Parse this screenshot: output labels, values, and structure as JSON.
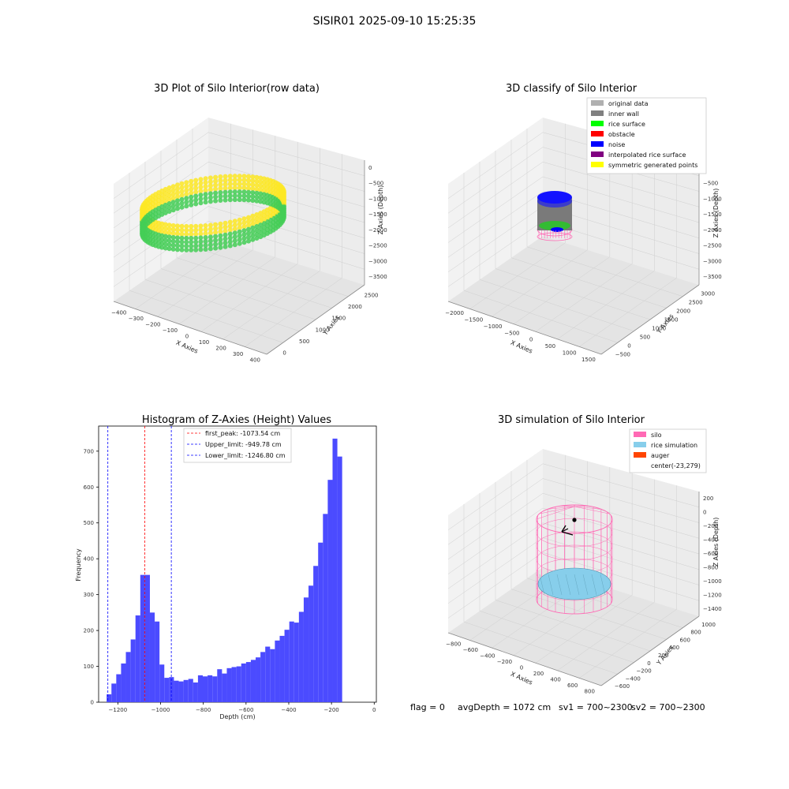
{
  "suptitle": "SISIR01 2025-09-10 15:25:35",
  "status": {
    "flag": "flag = 0",
    "avg": "avgDepth = 1072 cm",
    "sv1": "sv1 = 700~2300",
    "sv2": "sv2 = 700~2300"
  },
  "colors": {
    "hist_bar": "#4b4bff",
    "peak_line": "#ff0000",
    "limit_line": "#0000ff",
    "silo": "#ff69b4",
    "rice": "#87ceeb",
    "auger": "#ff4500"
  },
  "chart_data": [
    {
      "type": "scatter",
      "title": "3D Plot of Silo Interior(row data)",
      "xlabel": "X Axies",
      "ylabel": "Y Axies",
      "zlabel": "Z Axies (Depth)",
      "x_ticks": [
        "−400",
        "−300",
        "−200",
        "−100",
        "0",
        "100",
        "200",
        "300",
        "400"
      ],
      "y_ticks": [
        "0",
        "500",
        "1000",
        "1500",
        "2000",
        "2500"
      ],
      "z_ticks": [
        "0",
        "−500",
        "−1000",
        "−1500",
        "−2000",
        "−2500",
        "−3000",
        "−3500"
      ],
      "colormap": [
        "#44ce56",
        "#fde725"
      ]
    },
    {
      "type": "scatter",
      "title": "3D classify of Silo Interior",
      "xlabel": "X Axies",
      "ylabel": "Y Axies",
      "zlabel": "Z Axies (Depth)",
      "x_ticks": [
        "−2000",
        "−1500",
        "−1000",
        "−500",
        "0",
        "500",
        "1000",
        "1500"
      ],
      "y_ticks": [
        "−500",
        "0",
        "500",
        "1000",
        "1500",
        "2000",
        "2500",
        "3000"
      ],
      "z_ticks": [
        "0",
        "−500",
        "−1000",
        "−1500",
        "−2000",
        "−2500",
        "−3000",
        "−3500"
      ],
      "legend": [
        {
          "label": "original data",
          "color": "#b0b0b0"
        },
        {
          "label": "inner wall",
          "color": "#808080"
        },
        {
          "label": "rice surface",
          "color": "#00ff00"
        },
        {
          "label": "obstacle",
          "color": "#ff0000"
        },
        {
          "label": "noise",
          "color": "#0000ff"
        },
        {
          "label": "interpolated rice surface",
          "color": "#800080"
        },
        {
          "label": "symmetric generated points",
          "color": "#ffff00"
        }
      ]
    },
    {
      "type": "bar",
      "title": "Histogram of Z-Axies (Height) Values",
      "xlabel": "Depth (cm)",
      "ylabel": "Frequency",
      "xlim": [
        -1290,
        10
      ],
      "ylim": [
        0,
        770
      ],
      "x_ticks": [
        -1200,
        -1000,
        -800,
        -600,
        -400,
        -200,
        0
      ],
      "y_ticks": [
        0,
        100,
        200,
        300,
        400,
        500,
        600,
        700
      ],
      "bin_start": -1252.5,
      "bin_width": 22.5,
      "values": [
        22,
        52,
        78,
        108,
        140,
        175,
        242,
        355,
        355,
        250,
        225,
        105,
        68,
        70,
        60,
        58,
        62,
        65,
        55,
        75,
        72,
        75,
        72,
        92,
        80,
        95,
        98,
        100,
        108,
        112,
        118,
        125,
        140,
        155,
        148,
        172,
        185,
        202,
        225,
        222,
        252,
        292,
        325,
        380,
        445,
        525,
        620,
        735,
        685
      ],
      "lines": [
        {
          "label": "first_peak: -1073.54 cm",
          "x": -1073.54,
          "color": "#ff0000"
        },
        {
          "label": "Upper_limit: -949.78 cm",
          "x": -949.78,
          "color": "#0000ff"
        },
        {
          "label": "Lower_limit: -1246.80 cm",
          "x": -1246.8,
          "color": "#0000ff"
        }
      ]
    },
    {
      "type": "scatter",
      "title": "3D simulation of Silo Interior",
      "xlabel": "X Axies",
      "ylabel": "Y Axies",
      "zlabel": "Z Axies (Depth)",
      "x_ticks": [
        "−800",
        "−600",
        "−400",
        "−200",
        "0",
        "200",
        "400",
        "600",
        "800"
      ],
      "y_ticks": [
        "−600",
        "−400",
        "−200",
        "0",
        "200",
        "400",
        "600",
        "800",
        "1000"
      ],
      "z_ticks": [
        "200",
        "0",
        "−200",
        "−400",
        "−600",
        "−800",
        "−1000",
        "−1200",
        "−1400"
      ],
      "legend": [
        {
          "label": "silo",
          "color": "#ff69b4"
        },
        {
          "label": "rice simulation",
          "color": "#87ceeb"
        },
        {
          "label": "auger",
          "color": "#ff4500"
        },
        {
          "label": "center(-23,279)",
          "color": ""
        }
      ]
    }
  ]
}
